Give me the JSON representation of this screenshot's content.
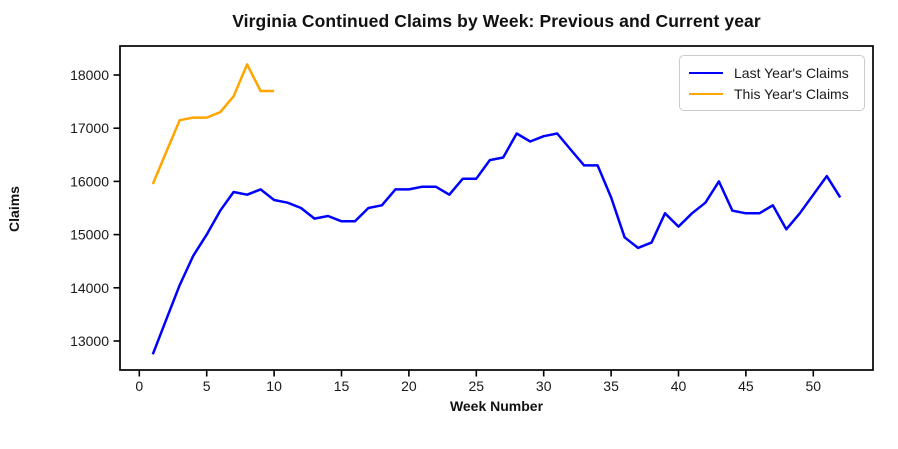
{
  "title": "Virginia Continued Claims by Week: Previous and Current year",
  "chart_data": {
    "type": "line",
    "title": "Virginia Continued Claims by Week: Previous and Current year",
    "xlabel": "Week Number",
    "ylabel": "Claims",
    "xlim": [
      -1.43,
      54.43
    ],
    "ylim": [
      12455,
      18545
    ],
    "xticks": [
      0,
      5,
      10,
      15,
      20,
      25,
      30,
      35,
      40,
      45,
      50
    ],
    "yticks": [
      13000,
      14000,
      15000,
      16000,
      17000,
      18000
    ],
    "grid": false,
    "legend_position": "upper right",
    "background": "#ffffff",
    "spine_color": "#000000",
    "series": [
      {
        "name": "Last Year's Claims",
        "color": "#0000ff",
        "x": [
          1,
          2,
          3,
          4,
          5,
          6,
          7,
          8,
          9,
          10,
          11,
          12,
          13,
          14,
          15,
          16,
          17,
          18,
          19,
          20,
          21,
          22,
          23,
          24,
          25,
          26,
          27,
          28,
          29,
          30,
          31,
          32,
          33,
          34,
          35,
          36,
          37,
          38,
          39,
          40,
          41,
          42,
          43,
          44,
          45,
          46,
          47,
          48,
          49,
          50,
          51,
          52
        ],
        "values": [
          12750,
          13400,
          14050,
          14600,
          15000,
          15450,
          15800,
          15750,
          15850,
          15650,
          15600,
          15500,
          15300,
          15350,
          15250,
          15250,
          15500,
          15550,
          15850,
          15850,
          15900,
          15900,
          15750,
          16050,
          16050,
          16400,
          16450,
          16900,
          16750,
          16850,
          16900,
          16600,
          16300,
          16300,
          15700,
          14950,
          14750,
          14850,
          15400,
          15150,
          15400,
          15600,
          16000,
          15450,
          15400,
          15400,
          15550,
          15100,
          15400,
          15750,
          16100,
          15700
        ]
      },
      {
        "name": "This Year's Claims",
        "color": "#ffa500",
        "x": [
          1,
          2,
          3,
          4,
          5,
          6,
          7,
          8,
          9,
          10
        ],
        "values": [
          15950,
          16550,
          17150,
          17200,
          17200,
          17300,
          17600,
          18200,
          17700,
          17700
        ]
      }
    ]
  }
}
